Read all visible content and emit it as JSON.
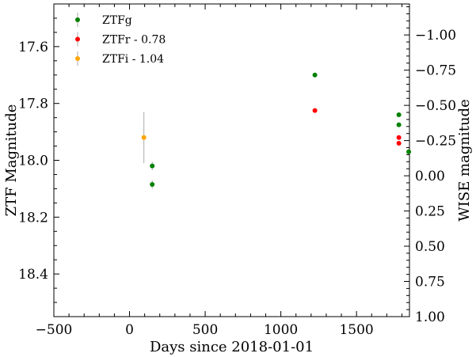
{
  "chart_data": {
    "type": "scatter",
    "xlabel": "Days since 2018-01-01",
    "ylabel_left": "ZTF Magnitude",
    "ylabel_right": "WISE magnitude",
    "xlim": [
      -500,
      1850
    ],
    "ylim_left": [
      18.55,
      17.45
    ],
    "ylim_right": [
      1.0,
      -1.22
    ],
    "x_ticks": [
      -500,
      0,
      500,
      1000,
      1500
    ],
    "y_ticks_left": [
      17.6,
      17.8,
      18.0,
      18.2,
      18.4
    ],
    "y_ticks_right": [
      -1.0,
      -0.75,
      -0.5,
      -0.25,
      0.0,
      0.25,
      0.5,
      0.75,
      1.0
    ],
    "legend_position": "upper-left",
    "series": [
      {
        "name": "ZTFg",
        "color": "#008000",
        "points": [
          {
            "x": 150,
            "y": 18.02,
            "yerr": 0.015
          },
          {
            "x": 150,
            "y": 18.085,
            "yerr": 0.015
          },
          {
            "x": 1225,
            "y": 17.7
          },
          {
            "x": 1780,
            "y": 17.84
          },
          {
            "x": 1780,
            "y": 17.875
          },
          {
            "x": 1845,
            "y": 17.97
          }
        ]
      },
      {
        "name": "ZTFr - 0.78",
        "color": "#ff0000",
        "points": [
          {
            "x": 1225,
            "y": 17.825
          },
          {
            "x": 1780,
            "y": 17.92
          },
          {
            "x": 1780,
            "y": 17.94
          }
        ]
      },
      {
        "name": "ZTFi - 1.04",
        "color": "#ffa500",
        "points": [
          {
            "x": 95,
            "y": 17.92,
            "yerr": 0.09
          }
        ]
      }
    ]
  },
  "tick_text": {
    "x": [
      "−500",
      "0",
      "500",
      "1000",
      "1500"
    ],
    "y_left": [
      "17.6",
      "17.8",
      "18.0",
      "18.2",
      "18.4"
    ],
    "y_right": [
      "−1.00",
      "−0.75",
      "−0.50",
      "−0.25",
      "0.00",
      "0.25",
      "0.50",
      "0.75",
      "1.00"
    ]
  }
}
